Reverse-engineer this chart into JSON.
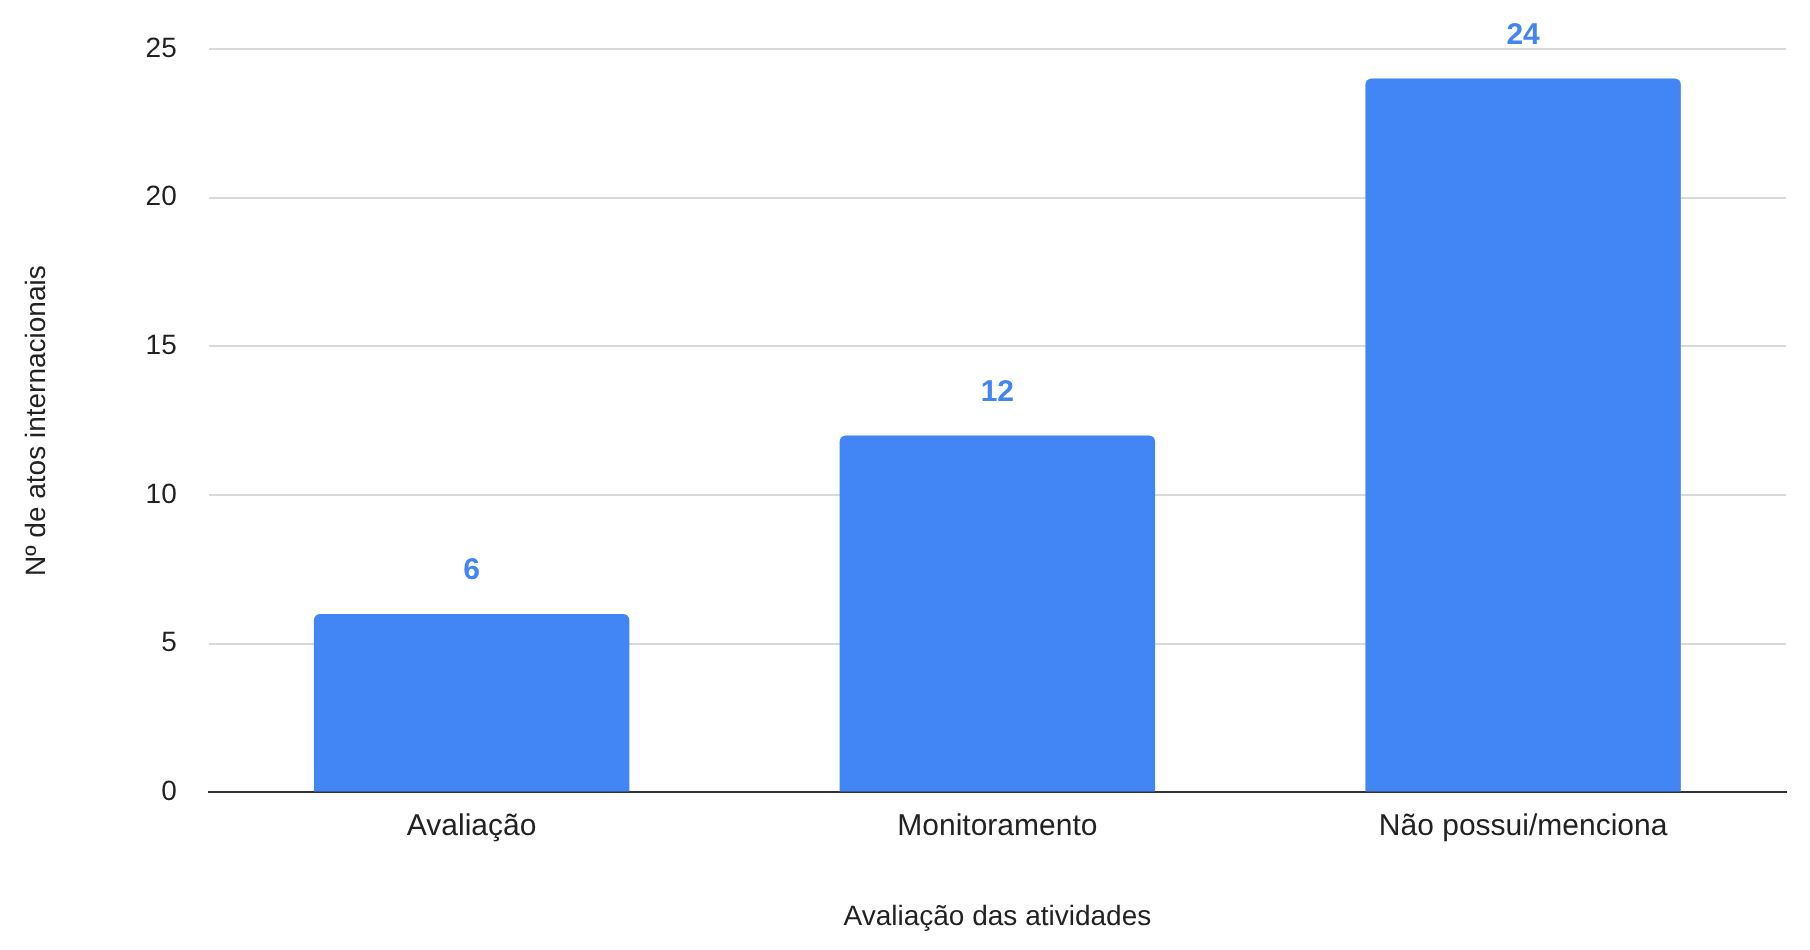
{
  "chart_data": {
    "type": "bar",
    "xlabel": "Avaliação das atividades",
    "ylabel": "Nº de atos internacionais",
    "categories": [
      "Avaliação",
      "Monitoramento",
      "Não possui/menciona"
    ],
    "values": [
      6,
      12,
      24
    ],
    "color": "#4285f4",
    "ylim": [
      0,
      25
    ],
    "yticks": [
      0,
      5,
      10,
      15,
      20,
      25
    ],
    "grid": "y",
    "data_labels": true
  }
}
